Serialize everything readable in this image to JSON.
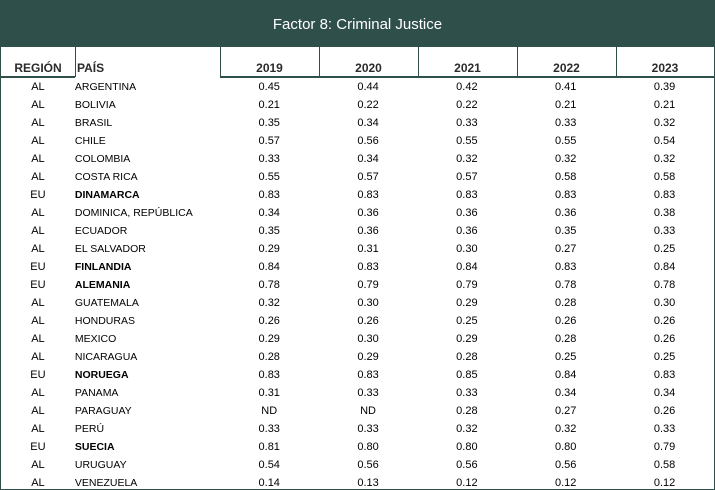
{
  "title": "Factor 8: Criminal Justice",
  "headers": {
    "region": "REGIÓN",
    "pais": "PAÍS",
    "years": [
      "2019",
      "2020",
      "2021",
      "2022",
      "2023"
    ]
  },
  "rows": [
    {
      "region": "AL",
      "pais": "ARGENTINA",
      "bold": false,
      "values": [
        "0.45",
        "0.44",
        "0.42",
        "0.41",
        "0.39"
      ]
    },
    {
      "region": "AL",
      "pais": "BOLIVIA",
      "bold": false,
      "values": [
        "0.21",
        "0.22",
        "0.22",
        "0.21",
        "0.21"
      ]
    },
    {
      "region": "AL",
      "pais": "BRASIL",
      "bold": false,
      "values": [
        "0.35",
        "0.34",
        "0.33",
        "0.33",
        "0.32"
      ]
    },
    {
      "region": "AL",
      "pais": "CHILE",
      "bold": false,
      "values": [
        "0.57",
        "0.56",
        "0.55",
        "0.55",
        "0.54"
      ]
    },
    {
      "region": "AL",
      "pais": "COLOMBIA",
      "bold": false,
      "values": [
        "0.33",
        "0.34",
        "0.32",
        "0.32",
        "0.32"
      ]
    },
    {
      "region": "AL",
      "pais": "COSTA RICA",
      "bold": false,
      "values": [
        "0.55",
        "0.57",
        "0.57",
        "0.58",
        "0.58"
      ]
    },
    {
      "region": "EU",
      "pais": "DINAMARCA",
      "bold": true,
      "values": [
        "0.83",
        "0.83",
        "0.83",
        "0.83",
        "0.83"
      ]
    },
    {
      "region": "AL",
      "pais": "DOMINICA, REPÚBLICA",
      "bold": false,
      "values": [
        "0.34",
        "0.36",
        "0.36",
        "0.36",
        "0.38"
      ]
    },
    {
      "region": "AL",
      "pais": "ECUADOR",
      "bold": false,
      "values": [
        "0.35",
        "0.36",
        "0.36",
        "0.35",
        "0.33"
      ]
    },
    {
      "region": "AL",
      "pais": "EL SALVADOR",
      "bold": false,
      "values": [
        "0.29",
        "0.31",
        "0.30",
        "0.27",
        "0.25"
      ]
    },
    {
      "region": "EU",
      "pais": "FINLANDIA",
      "bold": true,
      "values": [
        "0.84",
        "0.83",
        "0.84",
        "0.83",
        "0.84"
      ]
    },
    {
      "region": "EU",
      "pais": "ALEMANIA",
      "bold": true,
      "values": [
        "0.78",
        "0.79",
        "0.79",
        "0.78",
        "0.78"
      ]
    },
    {
      "region": "AL",
      "pais": "GUATEMALA",
      "bold": false,
      "values": [
        "0.32",
        "0.30",
        "0.29",
        "0.28",
        "0.30"
      ]
    },
    {
      "region": "AL",
      "pais": "HONDURAS",
      "bold": false,
      "values": [
        "0.26",
        "0.26",
        "0.25",
        "0.26",
        "0.26"
      ]
    },
    {
      "region": "AL",
      "pais": "MEXICO",
      "bold": false,
      "values": [
        "0.29",
        "0.30",
        "0.29",
        "0.28",
        "0.26"
      ]
    },
    {
      "region": "AL",
      "pais": "NICARAGUA",
      "bold": false,
      "values": [
        "0.28",
        "0.29",
        "0.28",
        "0.25",
        "0.25"
      ]
    },
    {
      "region": "EU",
      "pais": "NORUEGA",
      "bold": true,
      "values": [
        "0.83",
        "0.83",
        "0.85",
        "0.84",
        "0.83"
      ]
    },
    {
      "region": "AL",
      "pais": "PANAMA",
      "bold": false,
      "values": [
        "0.31",
        "0.33",
        "0.33",
        "0.34",
        "0.34"
      ]
    },
    {
      "region": "AL",
      "pais": "PARAGUAY",
      "bold": false,
      "values": [
        "ND",
        "ND",
        "0.28",
        "0.27",
        "0.26"
      ]
    },
    {
      "region": "AL",
      "pais": "PERÚ",
      "bold": false,
      "values": [
        "0.33",
        "0.33",
        "0.32",
        "0.32",
        "0.33"
      ]
    },
    {
      "region": "EU",
      "pais": "SUECIA",
      "bold": true,
      "values": [
        "0.81",
        "0.80",
        "0.80",
        "0.80",
        "0.79"
      ]
    },
    {
      "region": "AL",
      "pais": "URUGUAY",
      "bold": false,
      "values": [
        "0.54",
        "0.56",
        "0.56",
        "0.56",
        "0.58"
      ]
    },
    {
      "region": "AL",
      "pais": "VENEZUELA",
      "bold": false,
      "values": [
        "0.14",
        "0.13",
        "0.12",
        "0.12",
        "0.12"
      ]
    }
  ],
  "colors": {
    "header_bg": "#2f4f4b",
    "header_text": "#ffffff"
  }
}
